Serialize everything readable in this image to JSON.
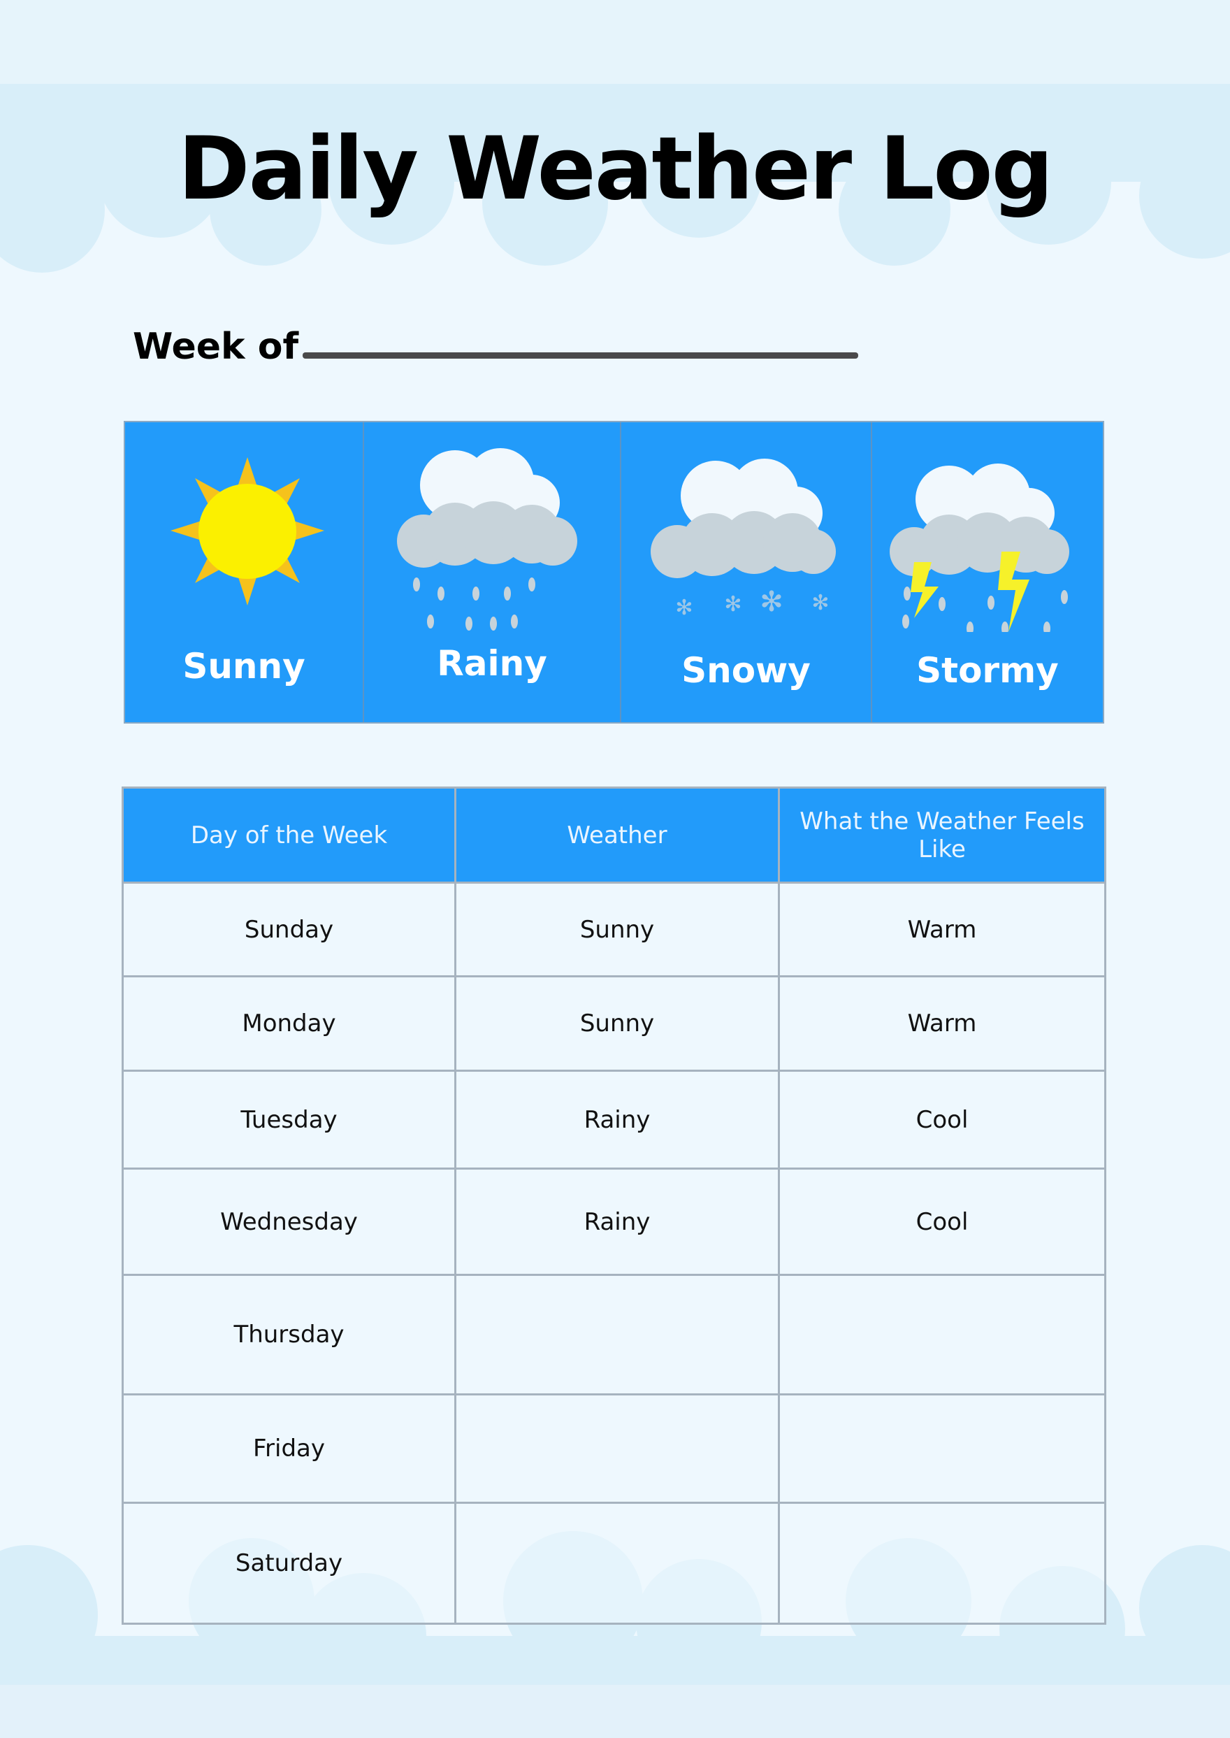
{
  "title": "Daily Weather Log",
  "week_of_label": "Week of",
  "weather_types": [
    {
      "label": "Sunny",
      "icon": "sun-icon"
    },
    {
      "label": "Rainy",
      "icon": "rain-cloud-icon"
    },
    {
      "label": "Snowy",
      "icon": "snow-cloud-icon"
    },
    {
      "label": "Stormy",
      "icon": "storm-cloud-icon"
    }
  ],
  "table": {
    "headers": [
      "Day of the Week",
      "Weather",
      "What the Weather Feels Like"
    ],
    "rows": [
      [
        "Sunday",
        "Sunny",
        "Warm"
      ],
      [
        "Monday",
        "Sunny",
        "Warm"
      ],
      [
        "Tuesday",
        "Rainy",
        "Cool"
      ],
      [
        "Wednesday",
        "Rainy",
        "Cool"
      ],
      [
        "Thursday",
        "",
        ""
      ],
      [
        "Friday",
        "",
        ""
      ],
      [
        "Saturday",
        "",
        ""
      ]
    ]
  },
  "colors": {
    "accent": "#229bfa",
    "background": "#eef8fe",
    "cloud": "#d5ecf8"
  }
}
